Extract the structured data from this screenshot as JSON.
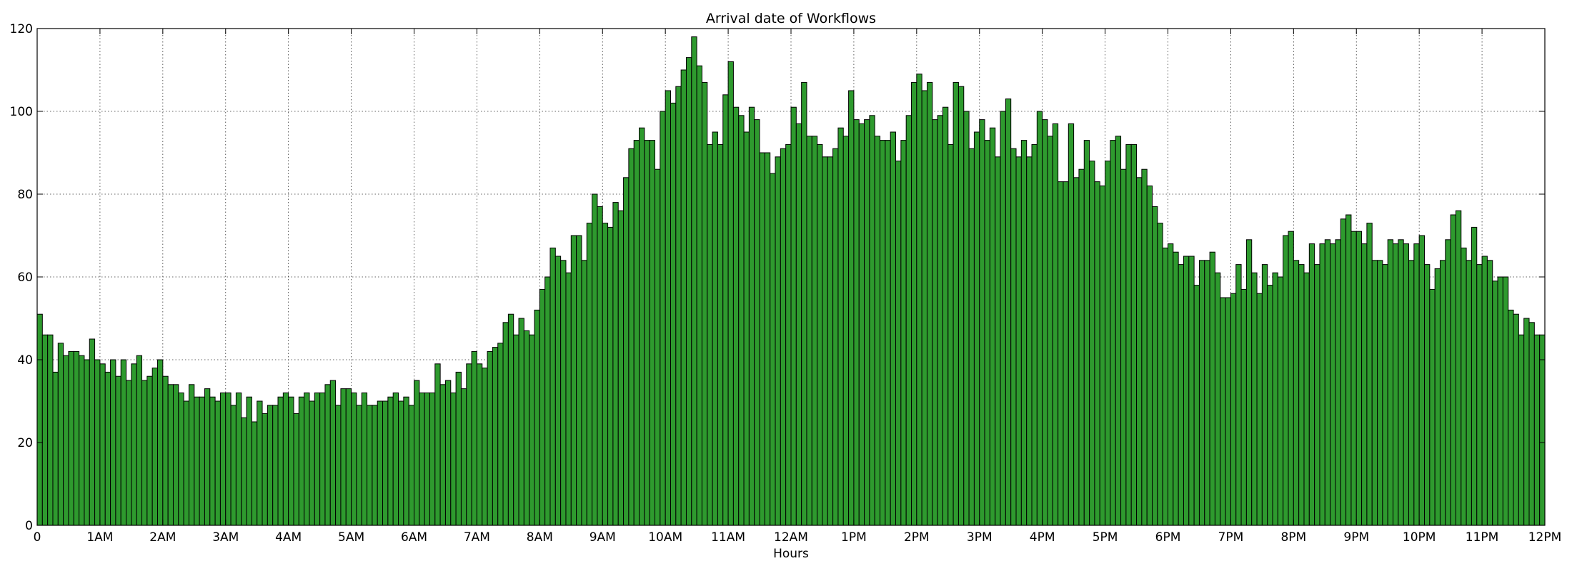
{
  "chart_data": {
    "type": "bar",
    "title": "Arrival date of Workflows",
    "xlabel": "Hours",
    "ylabel": "",
    "ylim": [
      0,
      120
    ],
    "xlim": [
      0,
      24
    ],
    "bins_per_hour": 12,
    "grid": true,
    "grid_style": "dotted",
    "bar_color": "#2e9a2e",
    "bar_edge_color": "#000000",
    "x_ticks": [
      {
        "value": 0,
        "label": "0"
      },
      {
        "value": 1,
        "label": "1AM"
      },
      {
        "value": 2,
        "label": "2AM"
      },
      {
        "value": 3,
        "label": "3AM"
      },
      {
        "value": 4,
        "label": "4AM"
      },
      {
        "value": 5,
        "label": "5AM"
      },
      {
        "value": 6,
        "label": "6AM"
      },
      {
        "value": 7,
        "label": "7AM"
      },
      {
        "value": 8,
        "label": "8AM"
      },
      {
        "value": 9,
        "label": "9AM"
      },
      {
        "value": 10,
        "label": "10AM"
      },
      {
        "value": 11,
        "label": "11AM"
      },
      {
        "value": 12,
        "label": "12AM"
      },
      {
        "value": 13,
        "label": "1PM"
      },
      {
        "value": 14,
        "label": "2PM"
      },
      {
        "value": 15,
        "label": "3PM"
      },
      {
        "value": 16,
        "label": "4PM"
      },
      {
        "value": 17,
        "label": "5PM"
      },
      {
        "value": 18,
        "label": "6PM"
      },
      {
        "value": 19,
        "label": "7PM"
      },
      {
        "value": 20,
        "label": "8PM"
      },
      {
        "value": 21,
        "label": "9PM"
      },
      {
        "value": 22,
        "label": "10PM"
      },
      {
        "value": 23,
        "label": "11PM"
      },
      {
        "value": 24,
        "label": "12PM"
      }
    ],
    "y_ticks": [
      {
        "value": 0,
        "label": "0"
      },
      {
        "value": 20,
        "label": "20"
      },
      {
        "value": 40,
        "label": "40"
      },
      {
        "value": 60,
        "label": "60"
      },
      {
        "value": 80,
        "label": "80"
      },
      {
        "value": 100,
        "label": "100"
      },
      {
        "value": 120,
        "label": "120"
      }
    ],
    "values": [
      51,
      46,
      46,
      37,
      44,
      41,
      42,
      42,
      41,
      40,
      45,
      40,
      39,
      37,
      40,
      36,
      40,
      35,
      39,
      41,
      35,
      36,
      38,
      40,
      36,
      34,
      34,
      32,
      30,
      34,
      31,
      31,
      33,
      31,
      30,
      32,
      32,
      29,
      32,
      26,
      31,
      25,
      30,
      27,
      29,
      29,
      31,
      32,
      31,
      27,
      31,
      32,
      30,
      32,
      32,
      34,
      35,
      29,
      33,
      33,
      32,
      29,
      32,
      29,
      29,
      30,
      30,
      31,
      32,
      30,
      31,
      29,
      35,
      32,
      32,
      32,
      39,
      34,
      35,
      32,
      37,
      33,
      39,
      42,
      39,
      38,
      42,
      43,
      44,
      49,
      51,
      46,
      50,
      47,
      46,
      52,
      57,
      60,
      67,
      65,
      64,
      61,
      70,
      70,
      64,
      73,
      80,
      77,
      73,
      72,
      78,
      76,
      84,
      91,
      93,
      96,
      93,
      93,
      86,
      100,
      105,
      102,
      106,
      110,
      113,
      118,
      111,
      107,
      92,
      95,
      92,
      104,
      112,
      101,
      99,
      95,
      101,
      98,
      90,
      90,
      85,
      89,
      91,
      92,
      101,
      97,
      107,
      94,
      94,
      92,
      89,
      89,
      91,
      96,
      94,
      105,
      98,
      97,
      98,
      99,
      94,
      93,
      93,
      95,
      88,
      93,
      99,
      107,
      109,
      105,
      107,
      98,
      99,
      101,
      92,
      107,
      106,
      100,
      91,
      95,
      98,
      93,
      96,
      89,
      100,
      103,
      91,
      89,
      93,
      89,
      92,
      100,
      98,
      94,
      97,
      83,
      83,
      97,
      84,
      86,
      93,
      88,
      83,
      82,
      88,
      93,
      94,
      86,
      92,
      92,
      84,
      86,
      82,
      77,
      73,
      67,
      68,
      66,
      63,
      65,
      65,
      58,
      64,
      64,
      66,
      61,
      55,
      55,
      56,
      63,
      57,
      69,
      61,
      56,
      63,
      58,
      61,
      60,
      70,
      71,
      64,
      63,
      61,
      68,
      63,
      68,
      69,
      68,
      69,
      74,
      75,
      71,
      71,
      68,
      73,
      64,
      64,
      63,
      69,
      68,
      69,
      68,
      64,
      68,
      70,
      63,
      57,
      62,
      64,
      69,
      75,
      76,
      67,
      64,
      72,
      63,
      65,
      64,
      59,
      60,
      60,
      52,
      51,
      46,
      50,
      49,
      46,
      46
    ]
  }
}
